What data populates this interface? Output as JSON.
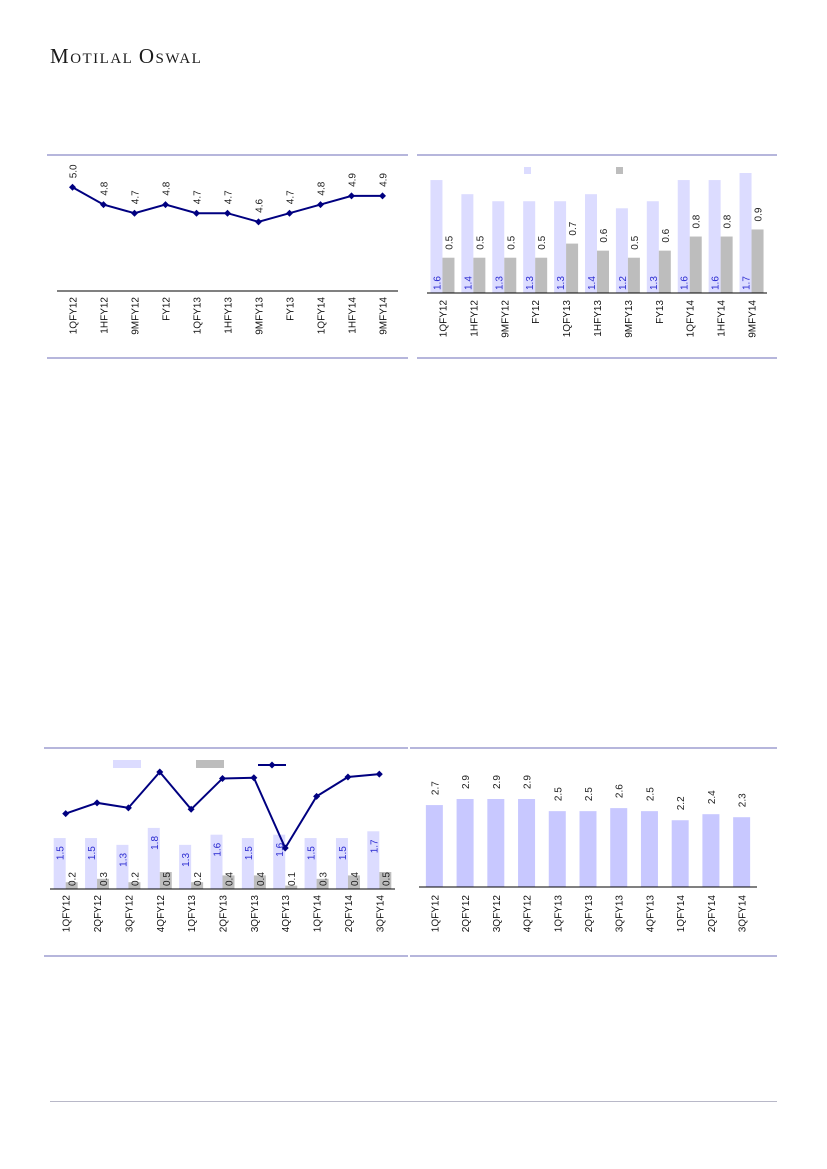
{
  "brand": {
    "first_initial": "M",
    "first_rest": "OTILAL",
    "second_initial": "O",
    "second_rest": "SWAL"
  },
  "chart_data": [
    {
      "id": "chart1",
      "type": "line",
      "categories": [
        "1QFY12",
        "1HFY12",
        "9MFY12",
        "FY12",
        "1QFY13",
        "1HFY13",
        "9MFY13",
        "FY13",
        "1QFY14",
        "1HFY14",
        "9MFY14"
      ],
      "series": [
        {
          "values": [
            5.0,
            4.8,
            4.7,
            4.8,
            4.7,
            4.7,
            4.6,
            4.7,
            4.8,
            4.9,
            4.9
          ],
          "color": "#000080"
        }
      ],
      "value_labels": [
        "5.0",
        "4.8",
        "4.7",
        "4.8",
        "4.7",
        "4.7",
        "4.6",
        "4.7",
        "4.8",
        "4.9",
        "4.9"
      ],
      "ylim": [
        3.8,
        5.2
      ]
    },
    {
      "id": "chart2",
      "type": "bar",
      "categories": [
        "1QFY12",
        "1HFY12",
        "9MFY12",
        "FY12",
        "1QFY13",
        "1HFY13",
        "9MFY13",
        "FY13",
        "1QFY14",
        "1HFY14",
        "9MFY14"
      ],
      "series": [
        {
          "values": [
            1.6,
            1.4,
            1.3,
            1.3,
            1.3,
            1.4,
            1.2,
            1.3,
            1.6,
            1.6,
            1.7
          ],
          "color": "#dcdcff"
        },
        {
          "values": [
            0.5,
            0.5,
            0.5,
            0.5,
            0.7,
            0.6,
            0.5,
            0.6,
            0.8,
            0.8,
            0.9
          ],
          "color": "#bdbdbd"
        }
      ],
      "labels_a": [
        "1.6",
        "1.4",
        "1.3",
        "1.3",
        "1.3",
        "1.4",
        "1.2",
        "1.3",
        "1.6",
        "1.6",
        "1.7"
      ],
      "labels_b": [
        "0.5",
        "0.5",
        "0.5",
        "0.5",
        "0.7",
        "0.6",
        "0.5",
        "0.6",
        "0.8",
        "0.8",
        "0.9"
      ],
      "ylim": [
        0,
        1.7
      ],
      "legend": "top"
    },
    {
      "id": "chart3",
      "type": "bar",
      "categories": [
        "1QFY12",
        "2QFY12",
        "3QFY12",
        "4QFY12",
        "1QFY13",
        "2QFY13",
        "3QFY13",
        "4QFY13",
        "1QFY14",
        "2QFY14",
        "3QFY14"
      ],
      "series": [
        {
          "values": [
            1.5,
            1.5,
            1.3,
            1.8,
            1.3,
            1.6,
            1.5,
            1.6,
            1.5,
            1.5,
            1.7
          ],
          "color": "#dcdcff"
        },
        {
          "values": [
            0.2,
            0.3,
            0.2,
            0.5,
            0.2,
            0.4,
            0.4,
            0.1,
            0.3,
            0.4,
            0.5
          ],
          "color": "#bdbdbd"
        },
        {
          "values": [
            0.52,
            0.67,
            0.6,
            1.1,
            0.58,
            1.01,
            1.02,
            0.04,
            0.76,
            1.03,
            1.07
          ],
          "color": "#000080",
          "kind": "line"
        }
      ],
      "labels_a": [
        "1.5",
        "1.5",
        "1.3",
        "1.8",
        "1.3",
        "1.6",
        "1.5",
        "1.6",
        "1.5",
        "1.5",
        "1.7"
      ],
      "labels_b": [
        "0.2",
        "0.3",
        "0.2",
        "0.5",
        "0.2",
        "0.4",
        "0.4",
        "0.1",
        "0.3",
        "0.4",
        "0.5"
      ],
      "ylim": [
        0,
        3.8
      ],
      "legend": "top"
    },
    {
      "id": "chart4",
      "type": "bar",
      "categories": [
        "1QFY12",
        "2QFY12",
        "3QFY12",
        "4QFY12",
        "1QFY13",
        "2QFY13",
        "3QFY13",
        "4QFY13",
        "1QFY14",
        "2QFY14",
        "3QFY14"
      ],
      "series": [
        {
          "values": [
            2.7,
            2.9,
            2.9,
            2.9,
            2.5,
            2.5,
            2.6,
            2.5,
            2.2,
            2.4,
            2.3
          ],
          "color": "#c8c8ff"
        }
      ],
      "value_labels": [
        "2.7",
        "2.9",
        "2.9",
        "2.9",
        "2.5",
        "2.5",
        "2.6",
        "2.5",
        "2.2",
        "2.4",
        "2.3"
      ],
      "ylim": [
        0,
        2.9
      ]
    }
  ]
}
